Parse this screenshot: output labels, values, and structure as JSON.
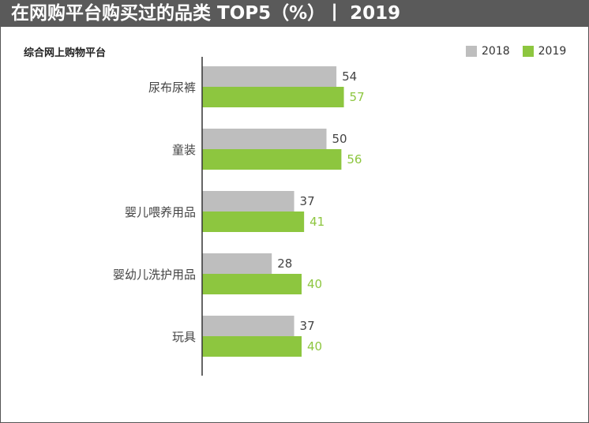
{
  "title": "在网购平台购买过的品类 TOP5（%）丨 2019",
  "subtitle": "综合网上购物平台",
  "colors": {
    "s2018": "#bebebe",
    "s2019": "#8dc63f",
    "label2018": "#444444",
    "label2019": "#8dc63f",
    "axis": "#333333",
    "header_bg": "#5a5a5a"
  },
  "chart_data": {
    "type": "bar",
    "orientation": "horizontal",
    "title": "在网购平台购买过的品类 TOP5（%）丨 2019",
    "subtitle": "综合网上购物平台",
    "categories": [
      "尿布尿裤",
      "童装",
      "婴儿喂养用品",
      "婴幼儿洗护用品",
      "玩具"
    ],
    "series": [
      {
        "name": "2018",
        "values": [
          54,
          50,
          37,
          28,
          37
        ]
      },
      {
        "name": "2019",
        "values": [
          57,
          56,
          41,
          40,
          40
        ]
      }
    ],
    "legend_position": "top-right",
    "grid": false,
    "xlim": [
      0,
      100
    ]
  }
}
